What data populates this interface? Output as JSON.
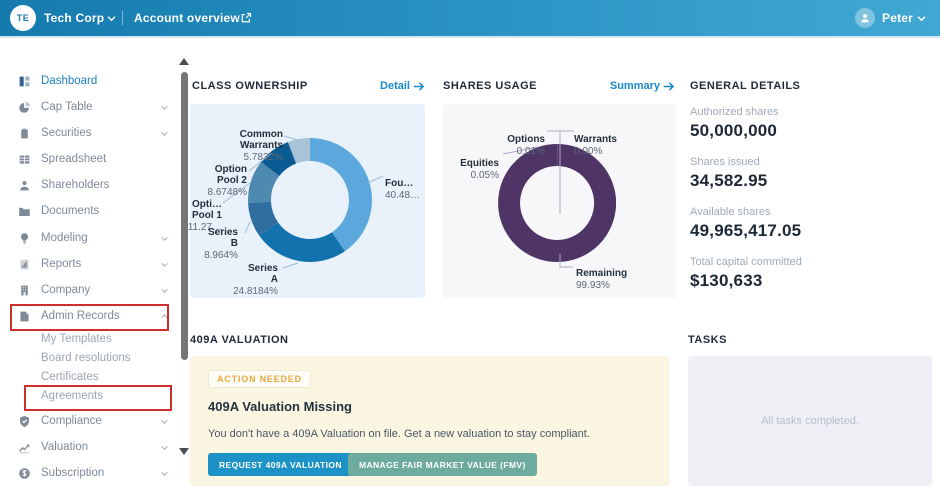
{
  "topbar": {
    "org_initials": "TE",
    "org_name": "Tech Corp",
    "nav_link": "Account overview",
    "user_name": "Peter"
  },
  "sidebar": {
    "items": [
      {
        "label": "Dashboard",
        "icon": "dashboard-icon"
      },
      {
        "label": "Cap Table",
        "icon": "pie-chart-icon"
      },
      {
        "label": "Securities",
        "icon": "clipboard-icon"
      },
      {
        "label": "Spreadsheet",
        "icon": "table-icon"
      },
      {
        "label": "Shareholders",
        "icon": "person-icon"
      },
      {
        "label": "Documents",
        "icon": "folder-icon"
      },
      {
        "label": "Modeling",
        "icon": "lightbulb-icon"
      },
      {
        "label": "Reports",
        "icon": "report-icon"
      },
      {
        "label": "Company",
        "icon": "building-icon"
      },
      {
        "label": "Admin Records",
        "icon": "document-icon"
      },
      {
        "label": "Compliance",
        "icon": "shield-icon"
      },
      {
        "label": "Valuation",
        "icon": "trend-icon"
      },
      {
        "label": "Subscription",
        "icon": "coin-icon"
      }
    ],
    "admin_subitems": [
      {
        "label": "My Templates"
      },
      {
        "label": "Board resolutions"
      },
      {
        "label": "Certificates"
      },
      {
        "label": "Agreements"
      }
    ]
  },
  "sections": {
    "class_ownership": {
      "title": "CLASS OWNERSHIP",
      "link_label": "Detail"
    },
    "shares_usage": {
      "title": "SHARES USAGE",
      "link_label": "Summary"
    },
    "general_details": {
      "title": "GENERAL DETAILS",
      "rows": [
        {
          "label": "Authorized shares",
          "value": "50,000,000"
        },
        {
          "label": "Shares issued",
          "value": "34,582.95"
        },
        {
          "label": "Available shares",
          "value": "49,965,417.05"
        },
        {
          "label": "Total capital committed",
          "value": "$130,633"
        }
      ]
    },
    "valuation_409a": {
      "title": "409A VALUATION",
      "badge": "ACTION NEEDED",
      "heading": "409A Valuation Missing",
      "message": "You don't have a 409A Valuation on file. Get a new valuation to stay compliant.",
      "primary_button": "REQUEST 409A VALUATION",
      "secondary_button": "MANAGE FAIR MARKET VALUE (FMV)"
    },
    "tasks": {
      "title": "TASKS",
      "empty_message": "All tasks completed."
    }
  },
  "colors": {
    "topbar_left": "#157aad",
    "topbar_right": "#41a8d3",
    "link_blue": "#1c8bca",
    "highlight_red": "#cd2f2f",
    "panel_yellow": "#faf6e2",
    "button_blue": "#1d92c6",
    "button_teal": "#6cab9d"
  },
  "chart_data": [
    {
      "type": "pie",
      "title": "CLASS OWNERSHIP",
      "style": "donut",
      "legend": "callout-labels",
      "segments": [
        {
          "label": "Fou…",
          "display_value": "40.48…",
          "value": 40.48,
          "color": "#5CA8DC"
        },
        {
          "label": "Series\nA",
          "display_value": "24.8184%",
          "value": 24.8184,
          "color": "#1172AE"
        },
        {
          "label": "Series\nB",
          "display_value": "8.964%",
          "value": 8.964,
          "color": "#2F6E9E"
        },
        {
          "label": "Opti…\nPool 1",
          "display_value": "11.27…",
          "value": 11.27,
          "color": "#4E89B0"
        },
        {
          "label": "Option\nPool 2",
          "display_value": "8.6748%",
          "value": 8.6748,
          "color": "#0A5B93"
        },
        {
          "label": "Common\nWarrants",
          "display_value": "5.7832%",
          "value": 5.7832,
          "color": "#A9C3D6"
        }
      ]
    },
    {
      "type": "pie",
      "title": "SHARES USAGE",
      "style": "donut",
      "legend": "callout-labels",
      "segments": [
        {
          "label": "Equities",
          "display_value": "0.05%",
          "value": 0.05,
          "color": "#7E6F95"
        },
        {
          "label": "Options",
          "display_value": "0.01%",
          "value": 0.01,
          "color": "#9C92B2"
        },
        {
          "label": "Warrants",
          "display_value": "0.00%",
          "value": 0.0,
          "color": "#C9C2D6"
        },
        {
          "label": "Remaining",
          "display_value": "99.93%",
          "value": 99.93,
          "color": "#4E3566"
        }
      ]
    }
  ]
}
